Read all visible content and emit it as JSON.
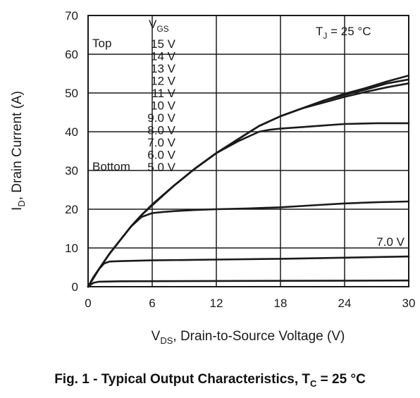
{
  "chart_data": {
    "type": "line",
    "title": "",
    "xlabel": "VDS, Drain-to-Source Voltage (V)",
    "ylabel": "ID, Drain Current (A)",
    "xlabel_parts": {
      "main": "V",
      "sub": "DS",
      "rest": ", Drain-to-Source Voltage (V)"
    },
    "ylabel_parts": {
      "main": "I",
      "sub": "D",
      "rest": ", Drain Current (A)"
    },
    "xlim": [
      0,
      30
    ],
    "ylim": [
      0,
      70
    ],
    "xticks": [
      0,
      6,
      12,
      18,
      24,
      30
    ],
    "yticks": [
      0,
      10,
      20,
      30,
      40,
      50,
      60,
      70
    ],
    "grid": true,
    "legend": {
      "placement": "top-left",
      "header_main": "V",
      "header_sub": "GS",
      "top_label": "Top",
      "bottom_label": "Bottom",
      "entries": [
        "15 V",
        "14 V",
        "13 V",
        "12 V",
        "11 V",
        "10 V",
        "9.0 V",
        "8.0 V",
        "7.0 V",
        "6.0 V",
        "5.0 V"
      ]
    },
    "annotations": {
      "tj_main": "T",
      "tj_sub": "J",
      "tj_rest": " = 25 °C",
      "curve_label": "7.0 V"
    },
    "series": [
      {
        "values": [
          [
            0,
            0
          ],
          [
            1,
            4.5
          ],
          [
            2,
            8.5
          ],
          [
            3,
            12
          ],
          [
            4,
            15.5
          ],
          [
            5,
            18.5
          ],
          [
            6,
            21.2
          ],
          [
            8,
            26
          ],
          [
            10,
            30.5
          ],
          [
            12,
            34.5
          ],
          [
            14,
            38
          ],
          [
            16,
            41.5
          ],
          [
            18,
            44
          ],
          [
            20,
            46
          ],
          [
            22,
            48
          ],
          [
            24,
            49.8
          ],
          [
            26,
            51.3
          ],
          [
            28,
            53
          ],
          [
            30,
            54.5
          ]
        ]
      },
      {
        "values": [
          [
            0,
            0
          ],
          [
            1,
            4.5
          ],
          [
            2,
            8.5
          ],
          [
            3,
            12
          ],
          [
            4,
            15.5
          ],
          [
            5,
            18.5
          ],
          [
            6,
            21.2
          ],
          [
            8,
            26
          ],
          [
            10,
            30.5
          ],
          [
            12,
            34.5
          ],
          [
            14,
            38
          ],
          [
            16,
            41.5
          ],
          [
            18,
            44
          ],
          [
            20,
            46
          ],
          [
            22,
            48
          ],
          [
            24,
            49.5
          ],
          [
            26,
            50.9
          ],
          [
            28,
            52.5
          ],
          [
            30,
            53.5
          ]
        ]
      },
      {
        "values": [
          [
            0,
            0
          ],
          [
            1,
            4.5
          ],
          [
            2,
            8.5
          ],
          [
            3,
            12
          ],
          [
            4,
            15.5
          ],
          [
            5,
            18.5
          ],
          [
            6,
            21.2
          ],
          [
            8,
            26
          ],
          [
            10,
            30.5
          ],
          [
            12,
            34.5
          ],
          [
            14,
            38
          ],
          [
            16,
            41.5
          ],
          [
            18,
            44
          ],
          [
            20,
            46
          ],
          [
            22,
            47.5
          ],
          [
            24,
            49
          ],
          [
            26,
            50.3
          ],
          [
            28,
            51.5
          ],
          [
            30,
            52.5
          ]
        ]
      },
      {
        "values": [
          [
            0,
            0
          ],
          [
            1,
            4.5
          ],
          [
            2,
            8.5
          ],
          [
            3,
            12
          ],
          [
            4,
            15.5
          ],
          [
            5,
            18.5
          ],
          [
            6,
            21
          ],
          [
            8,
            26
          ],
          [
            10,
            30.5
          ],
          [
            12,
            34.5
          ],
          [
            14,
            37.5
          ],
          [
            16,
            40
          ],
          [
            17,
            40.5
          ],
          [
            18,
            40.8
          ],
          [
            20,
            41.2
          ],
          [
            22,
            41.6
          ],
          [
            24,
            42
          ],
          [
            27,
            42.2
          ],
          [
            30,
            42.2
          ]
        ]
      },
      {
        "values": [
          [
            0,
            0
          ],
          [
            1,
            4.5
          ],
          [
            2,
            8.5
          ],
          [
            3,
            12
          ],
          [
            4,
            15.5
          ],
          [
            5,
            18
          ],
          [
            6,
            19
          ],
          [
            7,
            19.3
          ],
          [
            8,
            19.5
          ],
          [
            10,
            19.8
          ],
          [
            12,
            20
          ],
          [
            15,
            20.2
          ],
          [
            18,
            20.5
          ],
          [
            21,
            21
          ],
          [
            24,
            21.5
          ],
          [
            27,
            21.8
          ],
          [
            30,
            22
          ]
        ]
      },
      {
        "values": [
          [
            0,
            0
          ],
          [
            0.5,
            2.5
          ],
          [
            1,
            4.5
          ],
          [
            1.5,
            6
          ],
          [
            2,
            6.5
          ],
          [
            3,
            6.6
          ],
          [
            6,
            6.8
          ],
          [
            12,
            7
          ],
          [
            18,
            7.2
          ],
          [
            24,
            7.5
          ],
          [
            30,
            7.8
          ]
        ]
      },
      {
        "values": [
          [
            0,
            0
          ],
          [
            0.5,
            1
          ],
          [
            1,
            1.3
          ],
          [
            3,
            1.4
          ],
          [
            30,
            1.6
          ]
        ]
      }
    ]
  },
  "caption": {
    "main": "Fig. 1 - Typical Output Characteristics, T",
    "sub": "C",
    "rest": " = 25 °C"
  }
}
